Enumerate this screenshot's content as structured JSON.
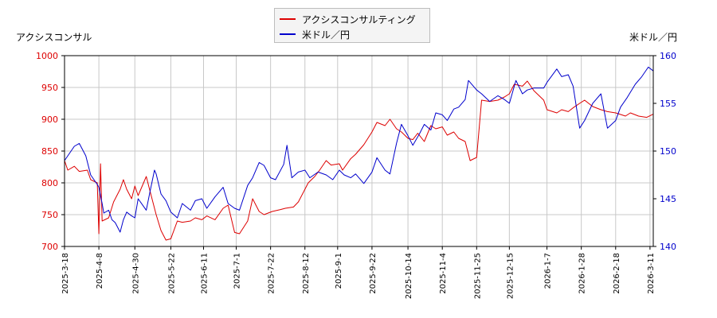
{
  "chart_data": {
    "type": "line",
    "left_axis_title": "アクシスコンサル",
    "right_axis_title": "米ドル／円",
    "legend": {
      "placement": "top-center"
    },
    "colors": {
      "stock": "#dd0000",
      "usdjpy": "#0000cc",
      "grid": "#c8c8c8"
    },
    "x_tick_labels": [
      "2025-3-18",
      "2025-4-8",
      "2025-4-30",
      "2025-5-22",
      "2025-6-11",
      "2025-7-1",
      "2025-7-22",
      "2025-8-12",
      "2025-9-1",
      "2025-9-22",
      "2025-10-14",
      "2025-11-4",
      "2025-11-25",
      "2025-12-15",
      "2026-1-7",
      "2026-1-28",
      "2026-2-18",
      "2026-3-11"
    ],
    "y_left": {
      "min": 700,
      "max": 1000,
      "ticks": [
        700,
        750,
        800,
        850,
        900,
        950,
        1000
      ]
    },
    "y_right": {
      "min": 140,
      "max": 160,
      "ticks": [
        140,
        145,
        150,
        155,
        160
      ]
    },
    "x_range": [
      "2025-3-18",
      "2026-3-13"
    ],
    "grid": true,
    "series": [
      {
        "name": "アクシスコンサルティング",
        "axis": "left",
        "points": [
          [
            "2025-3-18",
            835
          ],
          [
            "2025-3-20",
            820
          ],
          [
            "2025-3-24",
            826
          ],
          [
            "2025-3-27",
            818
          ],
          [
            "2025-4-1",
            820
          ],
          [
            "2025-4-3",
            805
          ],
          [
            "2025-4-7",
            800
          ],
          [
            "2025-4-8",
            720
          ],
          [
            "2025-4-9",
            830
          ],
          [
            "2025-4-10",
            740
          ],
          [
            "2025-4-14",
            745
          ],
          [
            "2025-4-17",
            770
          ],
          [
            "2025-4-21",
            790
          ],
          [
            "2025-4-23",
            805
          ],
          [
            "2025-4-25",
            790
          ],
          [
            "2025-4-28",
            775
          ],
          [
            "2025-4-30",
            795
          ],
          [
            "2025-5-2",
            780
          ],
          [
            "2025-5-7",
            810
          ],
          [
            "2025-5-9",
            790
          ],
          [
            "2025-5-13",
            750
          ],
          [
            "2025-5-16",
            725
          ],
          [
            "2025-5-19",
            710
          ],
          [
            "2025-5-22",
            712
          ],
          [
            "2025-5-26",
            740
          ],
          [
            "2025-5-29",
            738
          ],
          [
            "2025-6-3",
            740
          ],
          [
            "2025-6-6",
            745
          ],
          [
            "2025-6-10",
            742
          ],
          [
            "2025-6-13",
            748
          ],
          [
            "2025-6-18",
            742
          ],
          [
            "2025-6-23",
            760
          ],
          [
            "2025-6-26",
            765
          ],
          [
            "2025-6-30",
            722
          ],
          [
            "2025-7-3",
            720
          ],
          [
            "2025-7-8",
            740
          ],
          [
            "2025-7-11",
            775
          ],
          [
            "2025-7-15",
            755
          ],
          [
            "2025-7-18",
            750
          ],
          [
            "2025-7-23",
            755
          ],
          [
            "2025-7-28",
            758
          ],
          [
            "2025-7-31",
            760
          ],
          [
            "2025-8-5",
            762
          ],
          [
            "2025-8-8",
            770
          ],
          [
            "2025-8-12",
            790
          ],
          [
            "2025-8-14",
            800
          ],
          [
            "2025-8-18",
            810
          ],
          [
            "2025-8-21",
            820
          ],
          [
            "2025-8-25",
            835
          ],
          [
            "2025-8-28",
            828
          ],
          [
            "2025-9-2",
            830
          ],
          [
            "2025-9-4",
            820
          ],
          [
            "2025-9-9",
            838
          ],
          [
            "2025-9-12",
            845
          ],
          [
            "2025-9-17",
            860
          ],
          [
            "2025-9-22",
            880
          ],
          [
            "2025-9-25",
            895
          ],
          [
            "2025-9-30",
            890
          ],
          [
            "2025-10-3",
            900
          ],
          [
            "2025-10-7",
            885
          ],
          [
            "2025-10-10",
            880
          ],
          [
            "2025-10-14",
            870
          ],
          [
            "2025-10-17",
            868
          ],
          [
            "2025-10-20",
            878
          ],
          [
            "2025-10-24",
            865
          ],
          [
            "2025-10-28",
            890
          ],
          [
            "2025-10-31",
            885
          ],
          [
            "2025-11-4",
            888
          ],
          [
            "2025-11-7",
            875
          ],
          [
            "2025-11-11",
            880
          ],
          [
            "2025-11-14",
            870
          ],
          [
            "2025-11-18",
            865
          ],
          [
            "2025-11-21",
            835
          ],
          [
            "2025-11-25",
            840
          ],
          [
            "2025-11-28",
            930
          ],
          [
            "2025-12-3",
            928
          ],
          [
            "2025-12-8",
            930
          ],
          [
            "2025-12-12",
            935
          ],
          [
            "2025-12-15",
            940
          ],
          [
            "2025-12-18",
            955
          ],
          [
            "2025-12-23",
            952
          ],
          [
            "2025-12-26",
            960
          ],
          [
            "2025-12-30",
            945
          ],
          [
            "2026-1-5",
            930
          ],
          [
            "2026-1-7",
            915
          ],
          [
            "2026-1-13",
            910
          ],
          [
            "2026-1-16",
            915
          ],
          [
            "2026-1-20",
            912
          ],
          [
            "2026-1-23",
            918
          ],
          [
            "2026-1-27",
            925
          ],
          [
            "2026-1-30",
            930
          ],
          [
            "2026-2-4",
            920
          ],
          [
            "2026-2-9",
            915
          ],
          [
            "2026-2-13",
            912
          ],
          [
            "2026-2-18",
            910
          ],
          [
            "2026-2-24",
            905
          ],
          [
            "2026-2-27",
            910
          ],
          [
            "2026-3-4",
            905
          ],
          [
            "2026-3-9",
            903
          ],
          [
            "2026-3-13",
            908
          ]
        ]
      },
      {
        "name": "米ドル／円",
        "axis": "right",
        "points": [
          [
            "2025-3-18",
            149.0
          ],
          [
            "2025-3-20",
            149.5
          ],
          [
            "2025-3-24",
            150.5
          ],
          [
            "2025-3-27",
            150.8
          ],
          [
            "2025-3-31",
            149.5
          ],
          [
            "2025-4-3",
            147.5
          ],
          [
            "2025-4-7",
            146.5
          ],
          [
            "2025-4-8",
            146.2
          ],
          [
            "2025-4-10",
            144.5
          ],
          [
            "2025-4-11",
            143.5
          ],
          [
            "2025-4-14",
            143.8
          ],
          [
            "2025-4-16",
            142.8
          ],
          [
            "2025-4-18",
            142.5
          ],
          [
            "2025-4-21",
            141.5
          ],
          [
            "2025-4-23",
            142.8
          ],
          [
            "2025-4-25",
            143.6
          ],
          [
            "2025-4-28",
            143.2
          ],
          [
            "2025-4-30",
            143.0
          ],
          [
            "2025-5-2",
            145.0
          ],
          [
            "2025-5-7",
            143.8
          ],
          [
            "2025-5-9",
            145.5
          ],
          [
            "2025-5-12",
            148.0
          ],
          [
            "2025-5-13",
            147.6
          ],
          [
            "2025-5-16",
            145.5
          ],
          [
            "2025-5-19",
            144.8
          ],
          [
            "2025-5-22",
            143.6
          ],
          [
            "2025-5-26",
            143.0
          ],
          [
            "2025-5-29",
            144.5
          ],
          [
            "2025-6-3",
            143.8
          ],
          [
            "2025-6-6",
            144.8
          ],
          [
            "2025-6-10",
            145.0
          ],
          [
            "2025-6-13",
            144.0
          ],
          [
            "2025-6-18",
            145.2
          ],
          [
            "2025-6-23",
            146.2
          ],
          [
            "2025-6-26",
            144.5
          ],
          [
            "2025-6-30",
            144.0
          ],
          [
            "2025-7-3",
            143.8
          ],
          [
            "2025-7-8",
            146.4
          ],
          [
            "2025-7-11",
            147.2
          ],
          [
            "2025-7-15",
            148.8
          ],
          [
            "2025-7-18",
            148.5
          ],
          [
            "2025-7-22",
            147.2
          ],
          [
            "2025-7-25",
            147.0
          ],
          [
            "2025-7-30",
            148.6
          ],
          [
            "2025-8-1",
            150.6
          ],
          [
            "2025-8-4",
            147.2
          ],
          [
            "2025-8-8",
            147.8
          ],
          [
            "2025-8-12",
            148.0
          ],
          [
            "2025-8-15",
            147.2
          ],
          [
            "2025-8-20",
            147.8
          ],
          [
            "2025-8-25",
            147.5
          ],
          [
            "2025-8-29",
            147.0
          ],
          [
            "2025-9-2",
            148.0
          ],
          [
            "2025-9-5",
            147.5
          ],
          [
            "2025-9-9",
            147.2
          ],
          [
            "2025-9-12",
            147.6
          ],
          [
            "2025-9-17",
            146.6
          ],
          [
            "2025-9-22",
            147.8
          ],
          [
            "2025-9-25",
            149.3
          ],
          [
            "2025-9-30",
            148.0
          ],
          [
            "2025-10-3",
            147.6
          ],
          [
            "2025-10-7",
            150.8
          ],
          [
            "2025-10-10",
            152.8
          ],
          [
            "2025-10-14",
            151.6
          ],
          [
            "2025-10-17",
            150.6
          ],
          [
            "2025-10-21",
            151.8
          ],
          [
            "2025-10-24",
            152.8
          ],
          [
            "2025-10-28",
            152.2
          ],
          [
            "2025-10-31",
            154.0
          ],
          [
            "2025-11-4",
            153.8
          ],
          [
            "2025-11-7",
            153.2
          ],
          [
            "2025-11-11",
            154.4
          ],
          [
            "2025-11-14",
            154.6
          ],
          [
            "2025-11-18",
            155.4
          ],
          [
            "2025-11-20",
            157.4
          ],
          [
            "2025-11-25",
            156.4
          ],
          [
            "2025-11-28",
            156.0
          ],
          [
            "2025-12-3",
            155.2
          ],
          [
            "2025-12-8",
            155.8
          ],
          [
            "2025-12-12",
            155.4
          ],
          [
            "2025-12-15",
            155.0
          ],
          [
            "2025-12-19",
            157.4
          ],
          [
            "2025-12-23",
            156.0
          ],
          [
            "2025-12-26",
            156.4
          ],
          [
            "2025-12-30",
            156.6
          ],
          [
            "2026-1-5",
            156.6
          ],
          [
            "2026-1-7",
            157.2
          ],
          [
            "2026-1-13",
            158.6
          ],
          [
            "2026-1-16",
            157.8
          ],
          [
            "2026-1-20",
            158.0
          ],
          [
            "2026-1-23",
            156.8
          ],
          [
            "2026-1-27",
            152.4
          ],
          [
            "2026-1-30",
            153.2
          ],
          [
            "2026-2-4",
            155.0
          ],
          [
            "2026-2-9",
            156.0
          ],
          [
            "2026-2-13",
            152.4
          ],
          [
            "2026-2-18",
            153.2
          ],
          [
            "2026-2-21",
            154.6
          ],
          [
            "2026-2-25",
            155.6
          ],
          [
            "2026-3-2",
            157.0
          ],
          [
            "2026-3-6",
            157.8
          ],
          [
            "2026-3-10",
            158.8
          ],
          [
            "2026-3-13",
            158.4
          ]
        ]
      }
    ]
  }
}
